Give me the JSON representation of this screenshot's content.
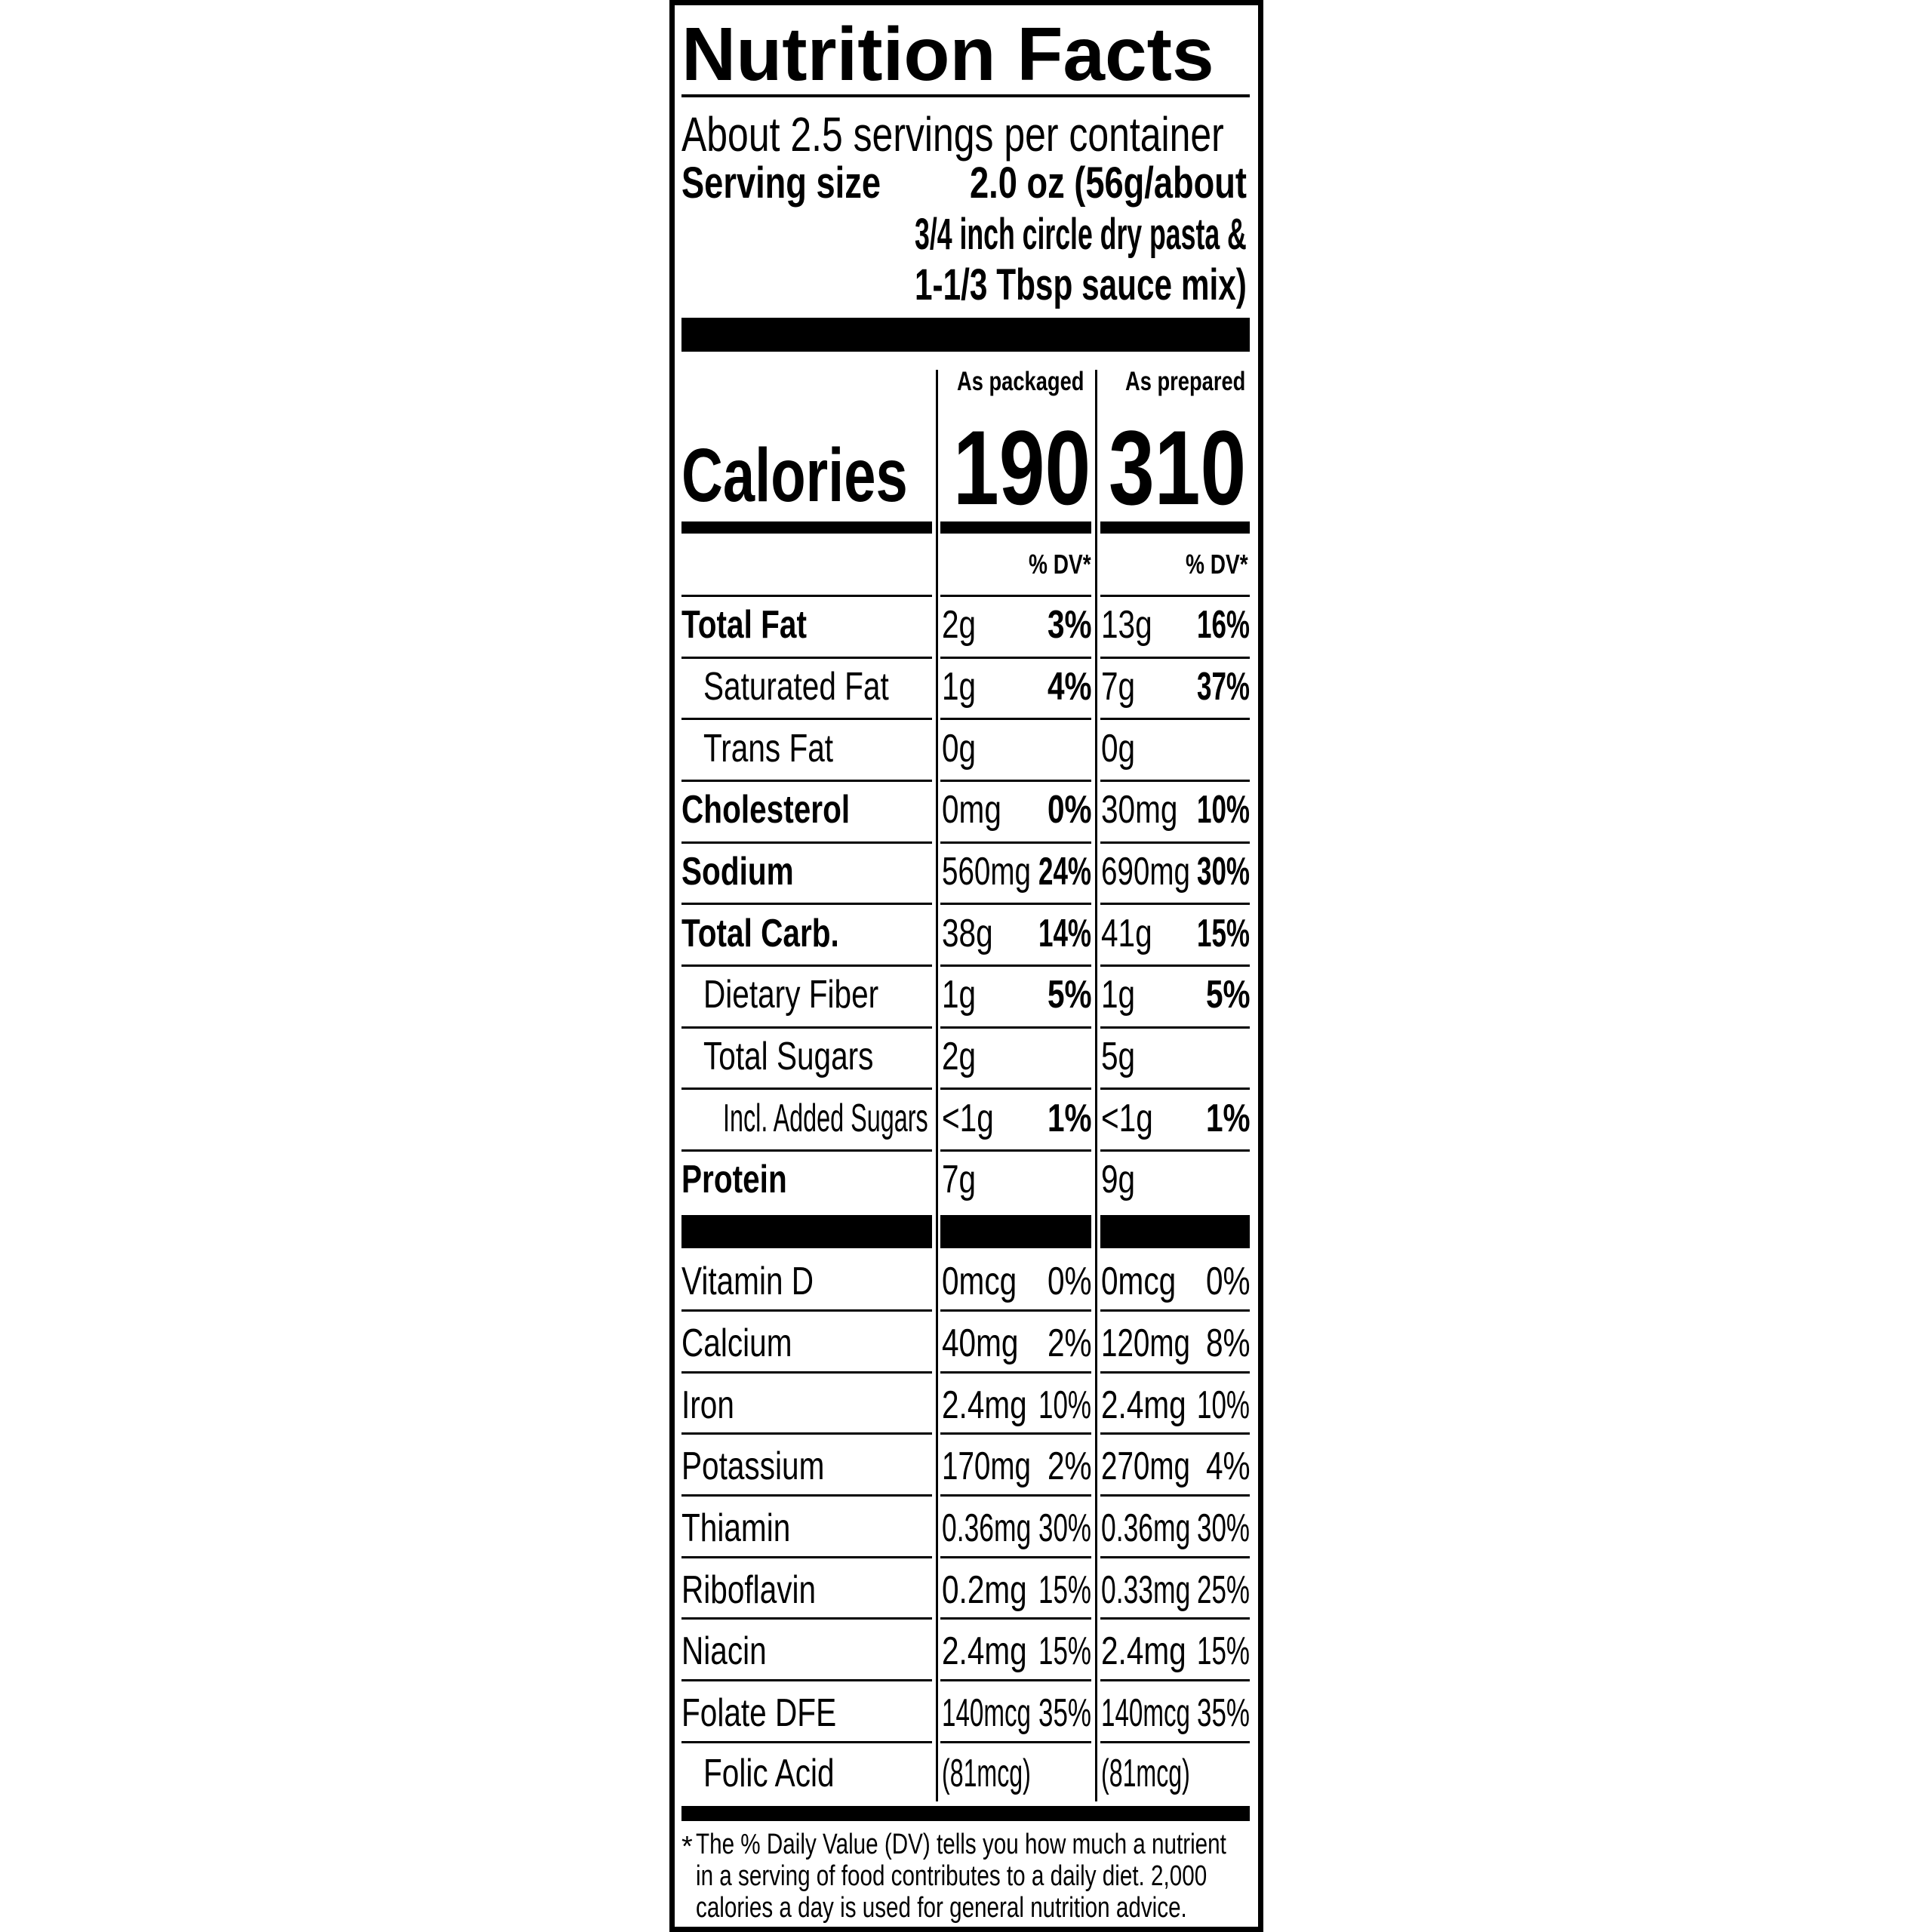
{
  "title": "Nutrition Facts",
  "servings_per_container": "About 2.5 servings per container",
  "serving_size": {
    "label": "Serving size",
    "lines": [
      "2.0 oz (56g/about",
      "3/4 inch circle dry pasta  &",
      "1-1/3 Tbsp sauce mix)"
    ]
  },
  "columns": {
    "packaged": "As packaged",
    "prepared": "As prepared"
  },
  "calories": {
    "label": "Calories",
    "packaged": "190",
    "prepared": "310"
  },
  "dv_header": "% DV*",
  "nutrients": [
    {
      "name": "Total Fat",
      "bold": true,
      "indent": 0,
      "pkg_amt": "2g",
      "pkg_dv": "3%",
      "prep_amt": "13g",
      "prep_dv": "16%"
    },
    {
      "name": "Saturated Fat",
      "bold": false,
      "indent": 1,
      "pkg_amt": "1g",
      "pkg_dv": "4%",
      "prep_amt": "7g",
      "prep_dv": "37%"
    },
    {
      "name": "Trans Fat",
      "bold": false,
      "indent": 1,
      "pkg_amt": "0g",
      "pkg_dv": "",
      "prep_amt": "0g",
      "prep_dv": ""
    },
    {
      "name": "Cholesterol",
      "bold": true,
      "indent": 0,
      "pkg_amt": "0mg",
      "pkg_dv": "0%",
      "prep_amt": "30mg",
      "prep_dv": "10%"
    },
    {
      "name": "Sodium",
      "bold": true,
      "indent": 0,
      "pkg_amt": "560mg",
      "pkg_dv": "24%",
      "prep_amt": "690mg",
      "prep_dv": "30%"
    },
    {
      "name": "Total Carb.",
      "bold": true,
      "indent": 0,
      "pkg_amt": "38g",
      "pkg_dv": "14%",
      "prep_amt": "41g",
      "prep_dv": "15%"
    },
    {
      "name": "Dietary Fiber",
      "bold": false,
      "indent": 1,
      "pkg_amt": "1g",
      "pkg_dv": "5%",
      "prep_amt": "1g",
      "prep_dv": "5%"
    },
    {
      "name": "Total Sugars",
      "bold": false,
      "indent": 1,
      "pkg_amt": "2g",
      "pkg_dv": "",
      "prep_amt": "5g",
      "prep_dv": ""
    },
    {
      "name": "Incl. Added Sugars",
      "bold": false,
      "indent": 2,
      "pkg_amt": "<1g",
      "pkg_dv": "1%",
      "prep_amt": "<1g",
      "prep_dv": "1%"
    },
    {
      "name": "Protein",
      "bold": true,
      "indent": 0,
      "pkg_amt": "7g",
      "pkg_dv": "",
      "prep_amt": "9g",
      "prep_dv": ""
    }
  ],
  "vitamins": [
    {
      "name": "Vitamin D",
      "indent": 0,
      "pkg_amt": "0mcg",
      "pkg_dv": "0%",
      "prep_amt": "0mcg",
      "prep_dv": "0%"
    },
    {
      "name": "Calcium",
      "indent": 0,
      "pkg_amt": "40mg",
      "pkg_dv": "2%",
      "prep_amt": "120mg",
      "prep_dv": "8%"
    },
    {
      "name": "Iron",
      "indent": 0,
      "pkg_amt": "2.4mg",
      "pkg_dv": "10%",
      "prep_amt": "2.4mg",
      "prep_dv": "10%"
    },
    {
      "name": "Potassium",
      "indent": 0,
      "pkg_amt": "170mg",
      "pkg_dv": "2%",
      "prep_amt": "270mg",
      "prep_dv": "4%"
    },
    {
      "name": "Thiamin",
      "indent": 0,
      "pkg_amt": "0.36mg",
      "pkg_dv": "30%",
      "prep_amt": "0.36mg",
      "prep_dv": "30%"
    },
    {
      "name": "Riboflavin",
      "indent": 0,
      "pkg_amt": "0.2mg",
      "pkg_dv": "15%",
      "prep_amt": "0.33mg",
      "prep_dv": "25%"
    },
    {
      "name": "Niacin",
      "indent": 0,
      "pkg_amt": "2.4mg",
      "pkg_dv": "15%",
      "prep_amt": "2.4mg",
      "prep_dv": "15%"
    },
    {
      "name": "Folate DFE",
      "indent": 0,
      "pkg_amt": "140mcg",
      "pkg_dv": "35%",
      "prep_amt": "140mcg",
      "prep_dv": "35%"
    },
    {
      "name": "Folic Acid",
      "indent": 1,
      "pkg_amt": "(81mcg)",
      "pkg_dv": "",
      "prep_amt": "(81mcg)",
      "prep_dv": ""
    }
  ],
  "footnote": {
    "marker": "*",
    "lines": [
      "The % Daily Value (DV) tells you how much a nutrient",
      "in a serving of food contributes to a daily diet. 2,000",
      "calories a day is used for general nutrition advice."
    ]
  }
}
